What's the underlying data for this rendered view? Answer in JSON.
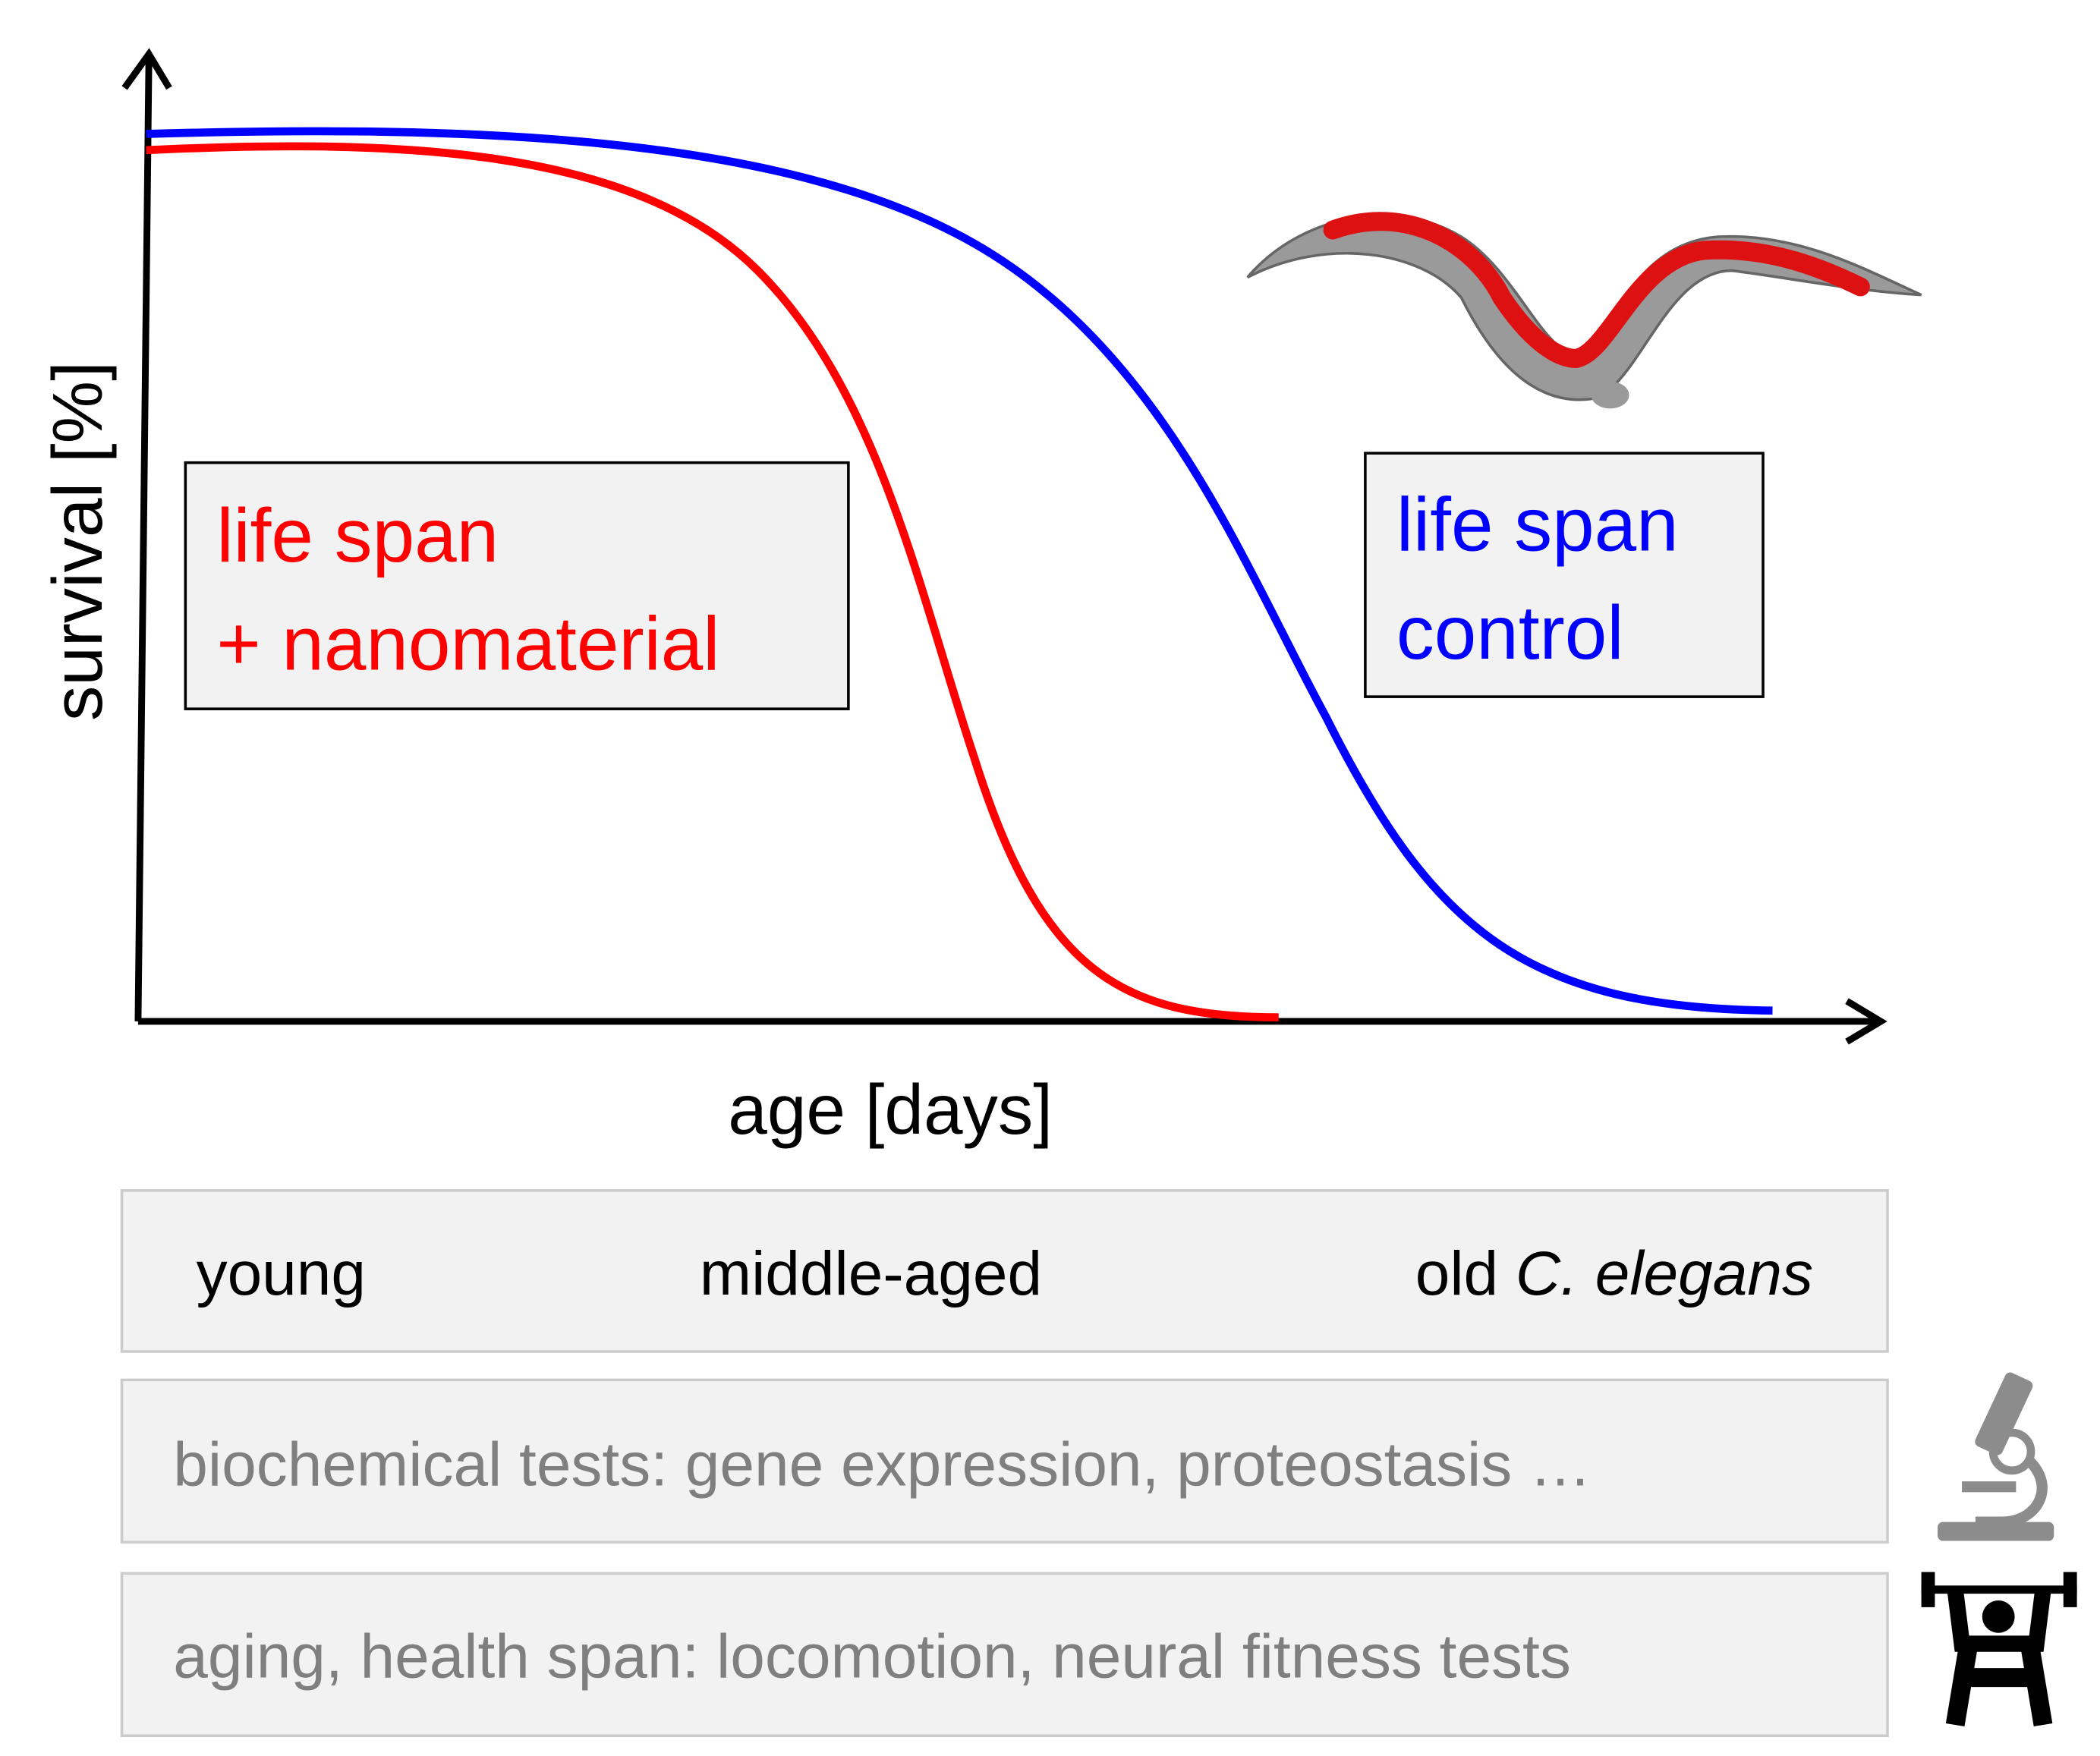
{
  "chart": {
    "y_axis_label": "survival [%]",
    "x_axis_label": "age [days]",
    "labels": [
      {
        "lines": [
          "life span",
          "+ nanomaterial"
        ]
      },
      {
        "lines": [
          "life span",
          "control"
        ]
      }
    ]
  },
  "stages": [
    {
      "text": "young"
    },
    {
      "text": "middle-aged"
    },
    {
      "text": "old ",
      "italic": "C. elegans"
    }
  ],
  "tests": [
    "biochemical tests: gene expression, proteostasis …",
    "aging, health span: locomotion, neural fitness tests"
  ]
}
